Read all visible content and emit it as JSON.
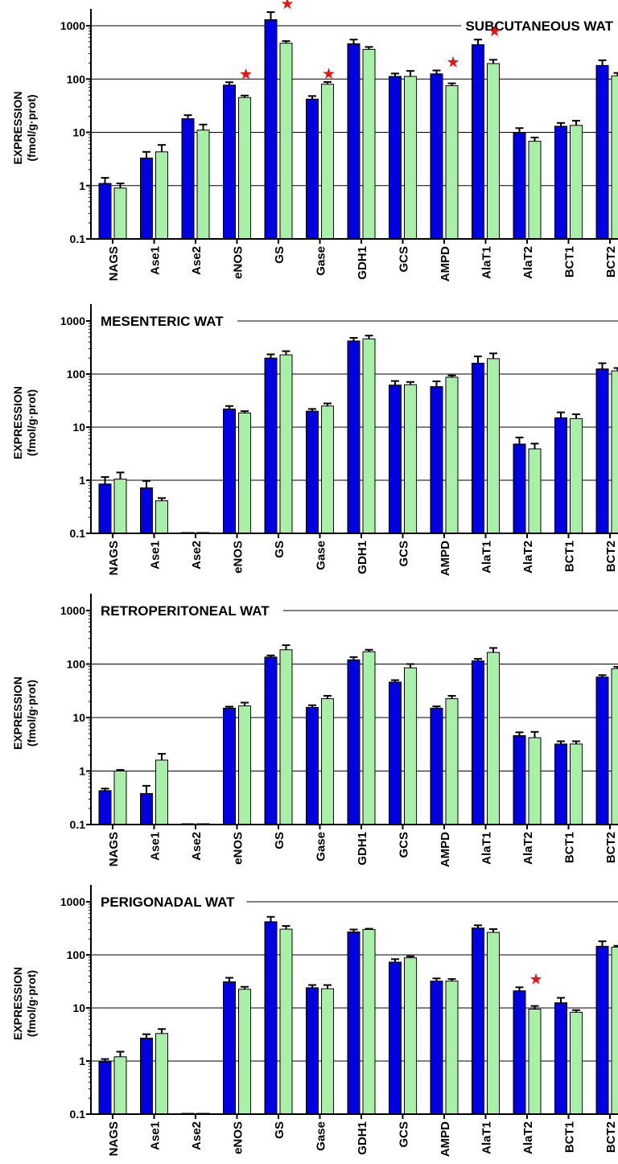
{
  "colors": {
    "series_a": "#0000e0",
    "series_b": "#a8f0a8",
    "marker": "#ee1111"
  },
  "chart_data": [
    {
      "type": "bar",
      "title": "SUBCUTANEOUS WAT",
      "ylabel": [
        "EXPRESSION",
        "(fmol/g·prot)"
      ],
      "yscale": "log",
      "ylim": [
        0.1,
        2000
      ],
      "ytick_labels": [
        "0.1",
        "1",
        "10",
        "100",
        "1000"
      ],
      "grid": "horizontal",
      "categories": [
        "NAGS",
        "Ase1",
        "Ase2",
        "eNOS",
        "GS",
        "Gase",
        "GDH1",
        "GCS",
        "AMPD",
        "AlaT1",
        "AlaT2",
        "BCT1",
        "BCT2"
      ],
      "series": [
        {
          "values": [
            1.1,
            3.3,
            18,
            77,
            1300,
            42,
            460,
            112,
            125,
            440,
            10,
            13,
            180
          ],
          "errors": [
            0.3,
            1.0,
            3,
            10,
            500,
            6,
            90,
            15,
            20,
            110,
            2,
            2,
            45
          ]
        },
        {
          "values": [
            0.9,
            4.3,
            11,
            45,
            470,
            80,
            360,
            112,
            75,
            195,
            6.8,
            13.5,
            115
          ],
          "errors": [
            0.2,
            1.5,
            3,
            4,
            45,
            8,
            40,
            30,
            8,
            35,
            1.2,
            3,
            15
          ]
        }
      ],
      "markers": [
        {
          "category": "eNOS",
          "symbol": "★"
        },
        {
          "category": "GS",
          "symbol": "★"
        },
        {
          "category": "Gase",
          "symbol": "★"
        },
        {
          "category": "AMPD",
          "symbol": "★"
        },
        {
          "category": "AlaT1",
          "symbol": "★"
        }
      ]
    },
    {
      "type": "bar",
      "title": "MESENTERIC WAT",
      "ylabel": [
        "EXPRESSION",
        "(fmol/g·prot)"
      ],
      "yscale": "log",
      "ylim": [
        0.1,
        2000
      ],
      "ytick_labels": [
        "0.1",
        "1",
        "10",
        "100",
        "1000"
      ],
      "grid": "horizontal",
      "categories": [
        "NAGS",
        "Ase1",
        "Ase2",
        "eNOS",
        "GS",
        "Gase",
        "GDH1",
        "GCS",
        "AMPD",
        "AlaT1",
        "AlaT2",
        "BCT1",
        "BCT2"
      ],
      "series": [
        {
          "values": [
            0.85,
            0.72,
            0.1,
            22,
            200,
            20,
            420,
            62,
            58,
            160,
            4.8,
            15,
            125
          ],
          "errors": [
            0.3,
            0.25,
            0,
            3,
            35,
            2,
            60,
            12,
            15,
            55,
            1.6,
            4,
            35
          ]
        },
        {
          "values": [
            1.05,
            0.41,
            0.1,
            18.5,
            230,
            25,
            460,
            63,
            87,
            195,
            3.9,
            14.5,
            115
          ],
          "errors": [
            0.35,
            0.05,
            0,
            1.5,
            40,
            3,
            70,
            8,
            7,
            50,
            1,
            3,
            15
          ]
        }
      ],
      "markers": []
    },
    {
      "type": "bar",
      "title": "RETROPERITONEAL WAT",
      "ylabel": [
        "EXPRESSION",
        "(fmol/g·prot)"
      ],
      "yscale": "log",
      "ylim": [
        0.1,
        2000
      ],
      "ytick_labels": [
        "0.1",
        "1",
        "10",
        "100",
        "1000"
      ],
      "grid": "horizontal",
      "categories": [
        "NAGS",
        "Ase1",
        "Ase2",
        "eNOS",
        "GS",
        "Gase",
        "GDH1",
        "GCS",
        "AMPD",
        "AlaT1",
        "AlaT2",
        "BCT1",
        "BCT2"
      ],
      "series": [
        {
          "values": [
            0.43,
            0.38,
            0.1,
            15,
            135,
            15.5,
            120,
            46,
            15,
            115,
            4.6,
            3.2,
            57
          ],
          "errors": [
            0.04,
            0.15,
            0,
            1,
            10,
            1.5,
            15,
            4,
            1.2,
            10,
            0.7,
            0.4,
            5
          ]
        },
        {
          "values": [
            1.0,
            1.6,
            0.1,
            16.5,
            185,
            22.5,
            170,
            85,
            22.5,
            165,
            4.2,
            3.2,
            82
          ],
          "errors": [
            0.05,
            0.5,
            0,
            2.5,
            40,
            3,
            15,
            15,
            3,
            35,
            1.2,
            0.4,
            7
          ]
        }
      ],
      "markers": []
    },
    {
      "type": "bar",
      "title": "PERIGONADAL WAT",
      "ylabel": [
        "EXPRESSION",
        "(fmol/g·prot)"
      ],
      "yscale": "log",
      "ylim": [
        0.1,
        2000
      ],
      "ytick_labels": [
        "0.1",
        "1",
        "10",
        "100",
        "1000"
      ],
      "grid": "horizontal",
      "categories": [
        "NAGS",
        "Ase1",
        "Ase2",
        "eNOS",
        "GS",
        "Gase",
        "GDH1",
        "GCS",
        "AMPD",
        "AlaT1",
        "AlaT2",
        "BCT1",
        "BCT2"
      ],
      "series": [
        {
          "values": [
            0.97,
            2.7,
            0.1,
            31,
            420,
            24,
            270,
            73,
            32,
            320,
            21,
            12.5,
            145
          ],
          "errors": [
            0.12,
            0.5,
            0,
            6,
            100,
            3,
            30,
            10,
            4,
            40,
            3.5,
            3,
            35
          ]
        },
        {
          "values": [
            1.2,
            3.3,
            0.1,
            22.5,
            305,
            23,
            300,
            88,
            32,
            265,
            9.5,
            8.3,
            140
          ],
          "errors": [
            0.3,
            0.7,
            0,
            2.5,
            45,
            4,
            10,
            6,
            3,
            40,
            1.4,
            0.8,
            8
          ]
        }
      ],
      "markers": [
        {
          "category": "AlaT2",
          "symbol": "★"
        }
      ]
    }
  ]
}
